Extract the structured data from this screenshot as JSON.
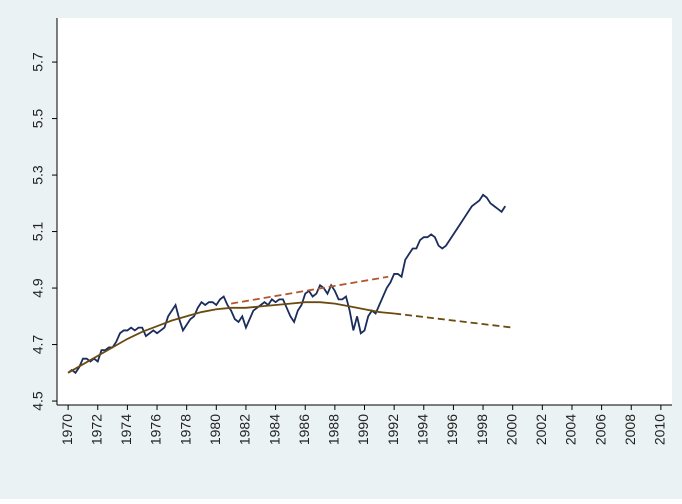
{
  "chart_data": {
    "type": "line",
    "xlim": [
      1969.25,
      2010.75
    ],
    "xticks": [
      1970,
      1972,
      1974,
      1976,
      1978,
      1980,
      1982,
      1984,
      1986,
      1988,
      1990,
      1992,
      1994,
      1996,
      1998,
      2000,
      2002,
      2004,
      2006,
      2008,
      2010
    ],
    "ylim": [
      4.486,
      5.856
    ],
    "yticks": [
      4.5,
      4.7,
      4.9,
      5.1,
      5.3,
      5.5,
      5.7
    ],
    "grid": false,
    "series": [
      {
        "color": "#1a2c5b",
        "style": "solid",
        "x": [
          1970,
          1970.25,
          1970.5,
          1970.75,
          1971,
          1971.25,
          1971.5,
          1971.75,
          1972,
          1972.25,
          1972.5,
          1972.75,
          1973,
          1973.25,
          1973.5,
          1973.75,
          1974,
          1974.25,
          1974.5,
          1974.75,
          1975,
          1975.25,
          1975.5,
          1975.75,
          1976,
          1976.25,
          1976.5,
          1976.75,
          1977,
          1977.25,
          1977.5,
          1977.75,
          1978,
          1978.25,
          1978.5,
          1978.75,
          1979,
          1979.25,
          1979.5,
          1979.75,
          1980,
          1980.25,
          1980.5,
          1980.75,
          1981,
          1981.25,
          1981.5,
          1981.75,
          1982,
          1982.25,
          1982.5,
          1982.75,
          1983,
          1983.25,
          1983.5,
          1983.75,
          1984,
          1984.25,
          1984.5,
          1984.75,
          1985,
          1985.25,
          1985.5,
          1985.75,
          1986,
          1986.25,
          1986.5,
          1986.75,
          1987,
          1987.25,
          1987.5,
          1987.75,
          1988,
          1988.25,
          1988.5,
          1988.75,
          1989,
          1989.25,
          1989.5,
          1989.75,
          1990,
          1990.25,
          1990.5,
          1990.75,
          1991,
          1991.25,
          1991.5,
          1991.75,
          1992,
          1992.25,
          1992.5,
          1992.75,
          1993,
          1993.25,
          1993.5,
          1993.75,
          1994,
          1994.25,
          1994.5,
          1994.75,
          1995,
          1995.25,
          1995.5,
          1995.75,
          1996,
          1996.25,
          1996.5,
          1996.75,
          1997,
          1997.25,
          1997.5,
          1997.75,
          1998,
          1998.25,
          1998.5,
          1998.75,
          1999,
          1999.25,
          1999.5
        ],
        "values": [
          4.6,
          4.61,
          4.6,
          4.62,
          4.65,
          4.65,
          4.64,
          4.65,
          4.64,
          4.68,
          4.68,
          4.69,
          4.69,
          4.71,
          4.74,
          4.75,
          4.75,
          4.76,
          4.75,
          4.76,
          4.76,
          4.73,
          4.74,
          4.75,
          4.74,
          4.75,
          4.76,
          4.8,
          4.82,
          4.84,
          4.79,
          4.75,
          4.77,
          4.79,
          4.8,
          4.83,
          4.85,
          4.84,
          4.85,
          4.85,
          4.84,
          4.86,
          4.87,
          4.84,
          4.82,
          4.79,
          4.78,
          4.8,
          4.76,
          4.79,
          4.82,
          4.83,
          4.84,
          4.85,
          4.84,
          4.86,
          4.85,
          4.86,
          4.86,
          4.83,
          4.8,
          4.78,
          4.82,
          4.84,
          4.88,
          4.89,
          4.87,
          4.88,
          4.91,
          4.9,
          4.88,
          4.91,
          4.89,
          4.86,
          4.86,
          4.87,
          4.82,
          4.75,
          4.8,
          4.74,
          4.75,
          4.8,
          4.82,
          4.81,
          4.84,
          4.87,
          4.9,
          4.92,
          4.95,
          4.95,
          4.94,
          5.0,
          5.02,
          5.04,
          5.04,
          5.07,
          5.08,
          5.08,
          5.09,
          5.08,
          5.05,
          5.04,
          5.05,
          5.07,
          5.09,
          5.11,
          5.13,
          5.15,
          5.17,
          5.19,
          5.2,
          5.21,
          5.23,
          5.22,
          5.2,
          5.19,
          5.18,
          5.17,
          5.19
        ]
      },
      {
        "color": "#6b4a10",
        "style": "solid",
        "x": [
          1970,
          1971,
          1972,
          1973,
          1974,
          1975,
          1976,
          1977,
          1978,
          1979,
          1980,
          1981,
          1982,
          1983,
          1984,
          1985,
          1986,
          1987,
          1988,
          1989,
          1990,
          1991,
          1992
        ],
        "values": [
          4.6,
          4.63,
          4.66,
          4.69,
          4.72,
          4.745,
          4.765,
          4.785,
          4.8,
          4.815,
          4.825,
          4.83,
          4.83,
          4.835,
          4.84,
          4.845,
          4.85,
          4.85,
          4.845,
          4.835,
          4.825,
          4.815,
          4.81
        ]
      },
      {
        "color": "#6b4a10",
        "style": "dashed",
        "x": [
          1992,
          2000
        ],
        "values": [
          4.81,
          4.76
        ]
      },
      {
        "color": "#b5552b",
        "style": "dashed",
        "x": [
          1981,
          1991.6
        ],
        "values": [
          4.845,
          4.94
        ]
      }
    ]
  }
}
